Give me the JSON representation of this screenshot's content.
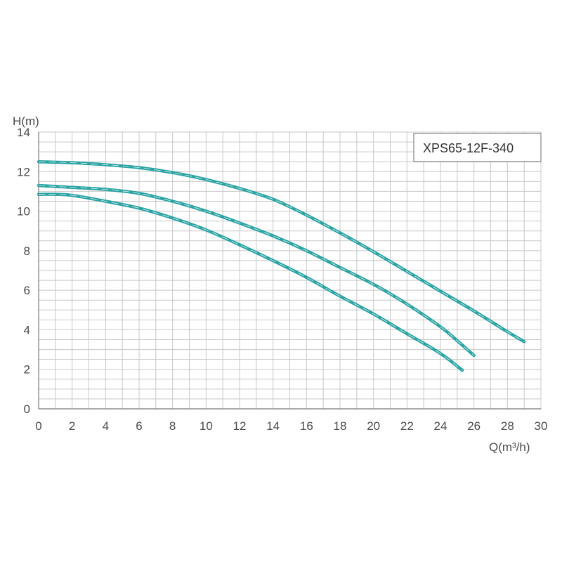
{
  "chart_data": {
    "type": "line",
    "title": "",
    "xlabel": "Q(m³/h)",
    "ylabel": "H(m)",
    "xlim": [
      0,
      30
    ],
    "ylim": [
      0,
      14
    ],
    "x_ticks": [
      "0",
      "2",
      "4",
      "6",
      "8",
      "10",
      "12",
      "14",
      "16",
      "18",
      "20",
      "22",
      "24",
      "26",
      "28",
      "30"
    ],
    "y_ticks": [
      "0",
      "2",
      "4",
      "6",
      "8",
      "10",
      "12",
      "14"
    ],
    "grid": true,
    "minor_grid_x_step": 1,
    "minor_grid_y_step": 1,
    "legend_label": "XPS65-12F-340",
    "legend_position": "top-right",
    "series_color": "#2aa3a3",
    "series": [
      {
        "x": [
          0,
          2,
          4,
          6,
          8,
          10,
          12,
          14,
          16,
          18,
          20,
          22,
          24,
          26,
          28,
          29
        ],
        "y": [
          12.5,
          12.45,
          12.35,
          12.2,
          11.95,
          11.6,
          11.15,
          10.6,
          9.8,
          8.9,
          7.95,
          6.95,
          5.95,
          4.95,
          3.9,
          3.4
        ]
      },
      {
        "x": [
          0,
          2,
          4,
          6,
          8,
          10,
          12,
          14,
          16,
          18,
          20,
          22,
          24,
          25,
          26
        ],
        "y": [
          11.3,
          11.2,
          11.1,
          10.9,
          10.5,
          10.0,
          9.4,
          8.75,
          8.0,
          7.15,
          6.3,
          5.3,
          4.15,
          3.45,
          2.7
        ]
      },
      {
        "x": [
          0,
          1,
          2,
          4,
          6,
          8,
          10,
          12,
          14,
          16,
          18,
          20,
          22,
          24,
          25.3
        ],
        "y": [
          10.85,
          10.85,
          10.8,
          10.5,
          10.15,
          9.65,
          9.05,
          8.3,
          7.5,
          6.65,
          5.7,
          4.8,
          3.8,
          2.8,
          1.95
        ]
      }
    ]
  }
}
